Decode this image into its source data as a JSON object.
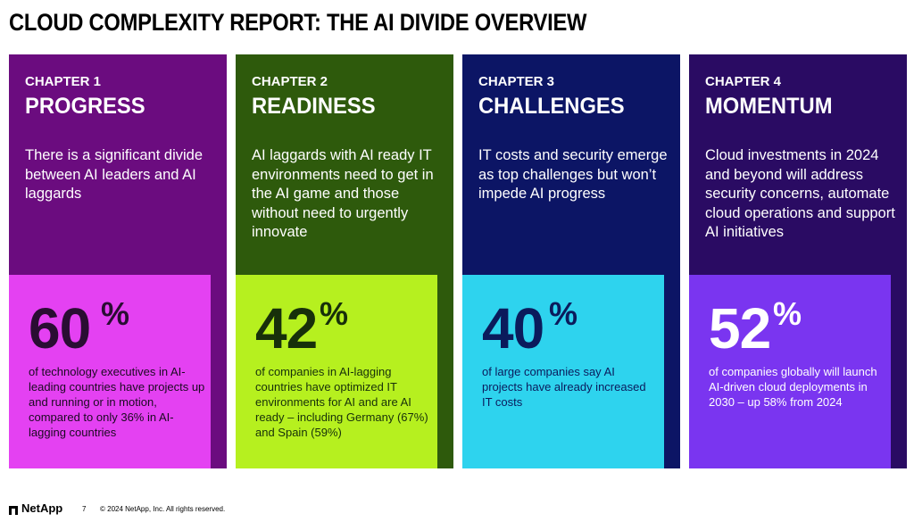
{
  "title": "CLOUD COMPLEXITY REPORT: THE AI DIVIDE OVERVIEW",
  "chapters": [
    {
      "chapter": "CHAPTER 1",
      "heading": "PROGRESS",
      "description": "There is a significant divide between AI leaders and AI laggards",
      "number": "60",
      "percent_sign": "%",
      "stat": "of technology executives in AI-leading countries have projects up and running or in motion, compared to only 36% in AI-lagging countries",
      "col_color": "#6B0C7F",
      "box_color": "#E441F2",
      "number_color": "#2A0D33",
      "stat_color": "#1a0a20"
    },
    {
      "chapter": "CHAPTER 2",
      "heading": "READINESS",
      "description": "AI laggards with AI ready IT environments need to get in the AI game and those without need to urgently innovate",
      "number": "42",
      "percent_sign": "%",
      "stat": "of companies in AI-lagging countries have optimized IT environments for AI and are AI ready – including Germany (67%) and Spain (59%)",
      "col_color": "#2E5A0C",
      "box_color": "#B6F01F",
      "number_color": "#17300A",
      "stat_color": "#17300A"
    },
    {
      "chapter": "CHAPTER 3",
      "heading": "CHALLENGES",
      "description": "IT costs and security emerge as top challenges but won’t impede AI progress",
      "number": "40",
      "percent_sign": "%",
      "stat": "of large companies say AI projects have already increased IT costs",
      "col_color": "#0C1565",
      "box_color": "#2ED3EE",
      "number_color": "#0B1B5C",
      "stat_color": "#0B1B5C"
    },
    {
      "chapter": "CHAPTER 4",
      "heading": "MOMENTUM",
      "description": "Cloud investments in 2024 and beyond will address security concerns, automate cloud operations and support AI initiatives",
      "number": "52",
      "percent_sign": "%",
      "stat": "of companies globally will launch AI-driven cloud deployments in 2030 – up 58% from 2024",
      "col_color": "#2A0B63",
      "box_color": "#7A35F0",
      "number_color": "#FFFFFF",
      "stat_color": "#FFFFFF"
    }
  ],
  "footer": {
    "logo_text": "NetApp",
    "logo_icon": "netapp-logo-icon",
    "page_number": "7",
    "copyright": "© 2024 NetApp, Inc. All rights reserved."
  }
}
